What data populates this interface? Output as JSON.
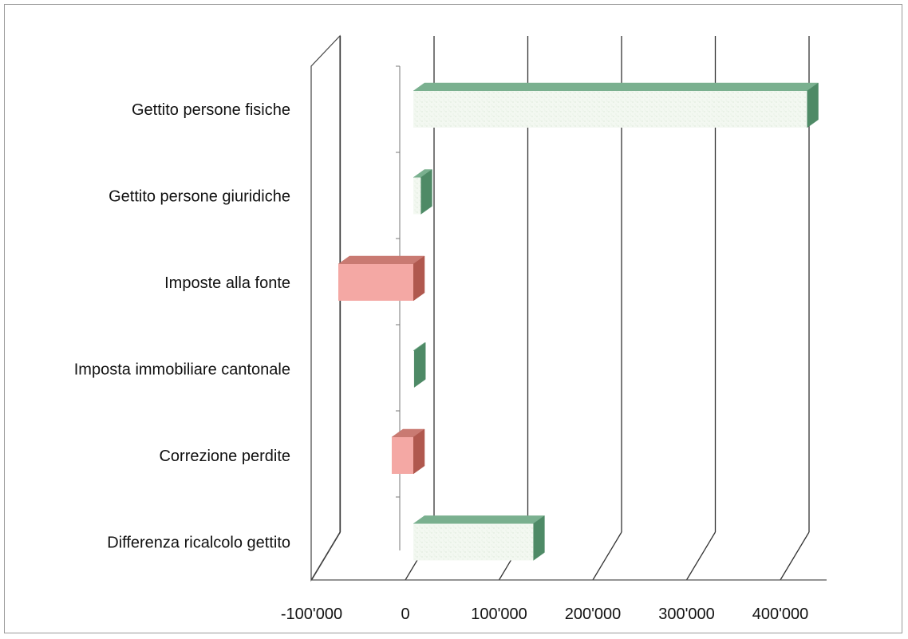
{
  "chart_data": {
    "type": "bar",
    "orientation": "horizontal",
    "style": "3d",
    "categories": [
      "Gettito persone fisiche",
      "Gettito persone giuridiche",
      "Imposte alla fonte",
      "Imposta immobiliare cantonale",
      "Correzione perdite",
      "Differenza ricalcolo gettito"
    ],
    "values": [
      420000,
      8000,
      -80000,
      1000,
      -23000,
      128000
    ],
    "xlim": [
      -100000,
      400000
    ],
    "x_ticks": [
      -100000,
      0,
      100000,
      200000,
      300000,
      400000
    ],
    "x_tick_labels": [
      "-100'000",
      "0",
      "100'000",
      "200'000",
      "300'000",
      "400'000"
    ],
    "grid": true,
    "legend": "none",
    "colors": {
      "positive_front": "#f3f8f1",
      "positive_top": "#7ab08f",
      "positive_side": "#4e8a66",
      "negative_front": "#f4a8a4",
      "negative_top": "#c97a72",
      "negative_side": "#b0584e",
      "grid": "#333333"
    }
  }
}
